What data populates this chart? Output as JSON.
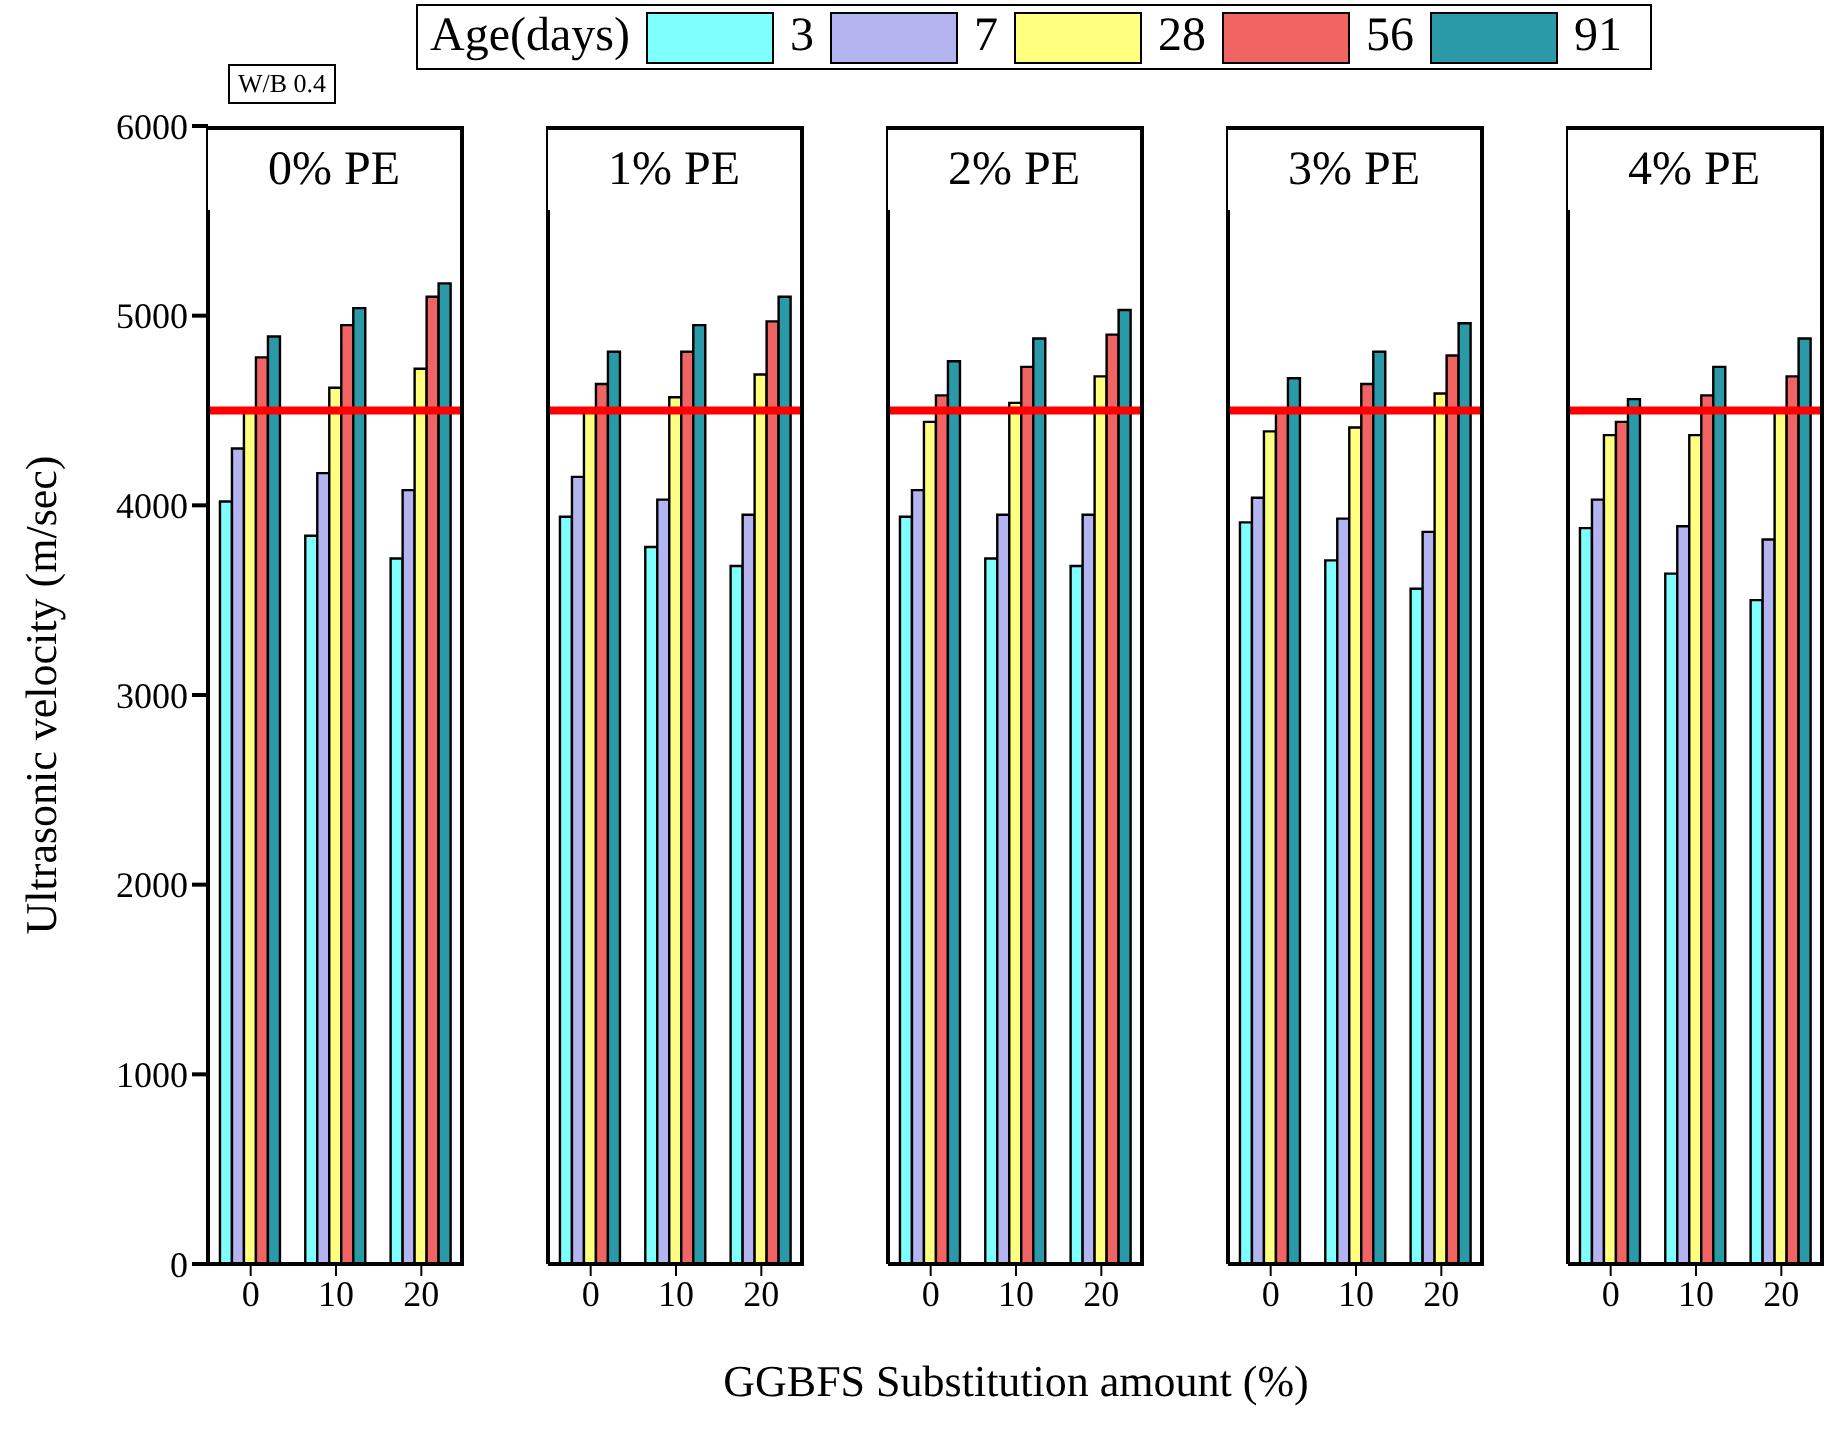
{
  "chart_data": [
    {
      "type": "bar",
      "title": "0% PE",
      "ylabel": "Ultrasonic velocity (m/sec)",
      "legend_title": "Age(days)",
      "legend": "top",
      "annotations": [
        "W/B 0.4"
      ],
      "categories": [
        "0",
        "10",
        "20"
      ],
      "ylim": [
        0,
        6000
      ],
      "yticks": [
        0,
        1000,
        2000,
        3000,
        4000,
        5000,
        6000
      ],
      "ref_lines": [
        {
          "axis": "y",
          "value": 4500,
          "color": "#ff0000"
        }
      ],
      "series": [
        {
          "name": "3",
          "color": "#80ffff",
          "values": [
            4020,
            3840,
            3720
          ]
        },
        {
          "name": "7",
          "color": "#b4b4f0",
          "values": [
            4300,
            4170,
            4080
          ]
        },
        {
          "name": "28",
          "color": "#ffff80",
          "values": [
            4500,
            4620,
            4720
          ]
        },
        {
          "name": "56",
          "color": "#f06464",
          "values": [
            4780,
            4950,
            5100
          ]
        },
        {
          "name": "91",
          "color": "#2a9aa8",
          "values": [
            4890,
            5040,
            5170
          ]
        }
      ]
    },
    {
      "type": "bar",
      "title": "1% PE",
      "categories": [
        "0",
        "10",
        "20"
      ],
      "ylim": [
        0,
        6000
      ],
      "yticks": [
        0,
        1000,
        2000,
        3000,
        4000,
        5000,
        6000
      ],
      "tick_labels": "x",
      "ref_lines": [
        {
          "axis": "y",
          "value": 4500,
          "color": "#ff0000"
        }
      ],
      "series": [
        {
          "color": "#80ffff",
          "values": [
            3940,
            3780,
            3680
          ]
        },
        {
          "color": "#b4b4f0",
          "values": [
            4150,
            4030,
            3950
          ]
        },
        {
          "color": "#ffff80",
          "values": [
            4490,
            4570,
            4690
          ]
        },
        {
          "color": "#f06464",
          "values": [
            4640,
            4810,
            4970
          ]
        },
        {
          "color": "#2a9aa8",
          "values": [
            4810,
            4950,
            5100
          ]
        }
      ]
    },
    {
      "type": "bar",
      "title": "2% PE",
      "xlabel": "GGBFS Substitution amount (%)",
      "categories": [
        "0",
        "10",
        "20"
      ],
      "ylim": [
        0,
        6000
      ],
      "yticks": [
        0,
        1000,
        2000,
        3000,
        4000,
        5000,
        6000
      ],
      "tick_labels": "x",
      "ref_lines": [
        {
          "axis": "y",
          "value": 4500,
          "color": "#ff0000"
        }
      ],
      "series": [
        {
          "color": "#80ffff",
          "values": [
            3940,
            3720,
            3680
          ]
        },
        {
          "color": "#b4b4f0",
          "values": [
            4080,
            3950,
            3950
          ]
        },
        {
          "color": "#ffff80",
          "values": [
            4440,
            4540,
            4680
          ]
        },
        {
          "color": "#f06464",
          "values": [
            4580,
            4730,
            4900
          ]
        },
        {
          "color": "#2a9aa8",
          "values": [
            4760,
            4880,
            5030
          ]
        }
      ]
    },
    {
      "type": "bar",
      "title": "3% PE",
      "categories": [
        "0",
        "10",
        "20"
      ],
      "ylim": [
        0,
        6000
      ],
      "yticks": [
        0,
        1000,
        2000,
        3000,
        4000,
        5000,
        6000
      ],
      "tick_labels": "x",
      "ref_lines": [
        {
          "axis": "y",
          "value": 4500,
          "color": "#ff0000"
        }
      ],
      "series": [
        {
          "color": "#80ffff",
          "values": [
            3910,
            3710,
            3560
          ]
        },
        {
          "color": "#b4b4f0",
          "values": [
            4040,
            3930,
            3860
          ]
        },
        {
          "color": "#ffff80",
          "values": [
            4390,
            4410,
            4590
          ]
        },
        {
          "color": "#f06464",
          "values": [
            4500,
            4640,
            4790
          ]
        },
        {
          "color": "#2a9aa8",
          "values": [
            4670,
            4810,
            4960
          ]
        }
      ]
    },
    {
      "type": "bar",
      "title": "4% PE",
      "categories": [
        "0",
        "10",
        "20"
      ],
      "ylim": [
        0,
        6000
      ],
      "yticks": [
        0,
        1000,
        2000,
        3000,
        4000,
        5000,
        6000
      ],
      "tick_labels": "x",
      "ref_lines": [
        {
          "axis": "y",
          "value": 4500,
          "color": "#ff0000"
        }
      ],
      "series": [
        {
          "color": "#80ffff",
          "values": [
            3880,
            3640,
            3500
          ]
        },
        {
          "color": "#b4b4f0",
          "values": [
            4030,
            3890,
            3820
          ]
        },
        {
          "color": "#ffff80",
          "values": [
            4370,
            4370,
            4510
          ]
        },
        {
          "color": "#f06464",
          "values": [
            4440,
            4580,
            4680
          ]
        },
        {
          "color": "#2a9aa8",
          "values": [
            4560,
            4730,
            4880
          ]
        }
      ]
    }
  ]
}
